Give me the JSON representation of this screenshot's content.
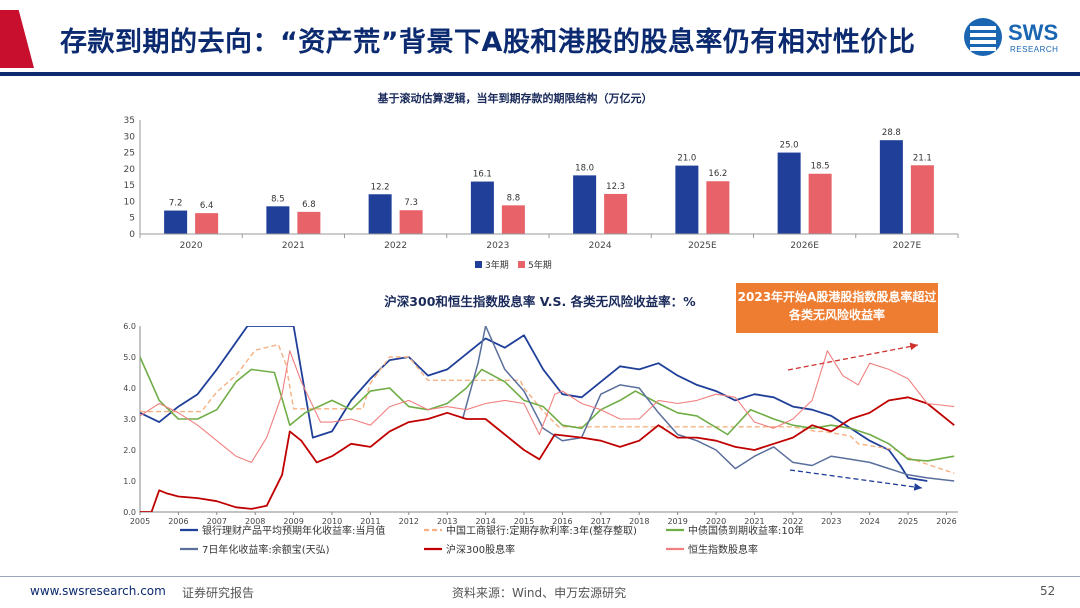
{
  "header": {
    "title": "存款到期的去向：“资产荒”背景下A股和港股的股息率仍有相对性价比",
    "logo_text": "SWS",
    "logo_sub": "RESEARCH"
  },
  "footer": {
    "url": "www.swsresearch.com",
    "report_type": "证券研究报告",
    "source": "资料来源：Wind、申万宏源研究",
    "page": "52"
  },
  "colors": {
    "navy": "#0b2a70",
    "bar_3y": "#1f3f99",
    "bar_5y": "#e8626a",
    "wmp": "#1f3f99",
    "icbc": "#f4b183",
    "cgb10": "#70ad47",
    "yuebao": "#5a6f9c",
    "csi300": "#c00000",
    "hsi": "#f08080",
    "callout": "#ee7d31"
  },
  "chart_data": [
    {
      "type": "bar",
      "title": "基于滚动估算逻辑，当年到期存款的期限结构（万亿元）",
      "categories": [
        "2020",
        "2021",
        "2022",
        "2023",
        "2024",
        "2025E",
        "2026E",
        "2027E"
      ],
      "series": [
        {
          "name": "3年期",
          "values": [
            7.2,
            8.5,
            12.2,
            16.1,
            18.0,
            21.0,
            25.0,
            28.8
          ]
        },
        {
          "name": "5年期",
          "values": [
            6.4,
            6.8,
            7.3,
            8.8,
            12.3,
            16.2,
            18.5,
            21.1
          ]
        }
      ],
      "data_labels": [
        [
          "7.2",
          "8.5",
          "12.2",
          "16.1",
          "18.0",
          "21.0",
          "25.0",
          "28.8"
        ],
        [
          "6.4",
          "6.8",
          "7.3",
          "8.8",
          "12.3",
          "16.2",
          "18.5",
          "21.1"
        ]
      ],
      "ylim": [
        0,
        35
      ],
      "yticks": [
        "0",
        "5",
        "10",
        "15",
        "20",
        "25",
        "30",
        "35"
      ],
      "legend_position": "bottom"
    },
    {
      "type": "line",
      "title": "沪深300和恒生指数股息率 V.S. 各类无风险收益率：%",
      "xlim": [
        2005,
        2026.3
      ],
      "ylim": [
        0,
        6
      ],
      "xticks": [
        "2005",
        "2006",
        "2007",
        "2008",
        "2009",
        "2010",
        "2011",
        "2012",
        "2013",
        "2014",
        "2015",
        "2016",
        "2017",
        "2018",
        "2019",
        "2020",
        "2021",
        "2022",
        "2023",
        "2024",
        "2025",
        "2026"
      ],
      "yticks": [
        "0.0",
        "1.0",
        "2.0",
        "3.0",
        "4.0",
        "5.0",
        "6.0"
      ],
      "legend_position": "bottom",
      "series": [
        {
          "name": "银行理财产品平均预期年化收益率:当月值",
          "x": [
            2005,
            2005.5,
            2006,
            2006.5,
            2007,
            2007.4,
            2007.8,
            2008,
            2009,
            2009.5,
            2010,
            2010.5,
            2011,
            2011.5,
            2012,
            2012.5,
            2013,
            2013.5,
            2014,
            2014.5,
            2015,
            2015.5,
            2016,
            2016.5,
            2017,
            2017.5,
            2018,
            2018.5,
            2019,
            2019.5,
            2020,
            2020.5,
            2021,
            2021.5,
            2022,
            2022.5,
            2023,
            2023.5,
            2024,
            2024.5,
            2024.8,
            2025,
            2025.5
          ],
          "y": [
            3.2,
            2.9,
            3.4,
            3.8,
            4.6,
            5.3,
            6.0,
            6.0,
            6.0,
            2.4,
            2.6,
            3.6,
            4.3,
            4.9,
            5.0,
            4.4,
            4.6,
            5.1,
            5.6,
            5.3,
            5.7,
            4.6,
            3.8,
            3.7,
            4.2,
            4.7,
            4.6,
            4.8,
            4.4,
            4.1,
            3.9,
            3.6,
            3.8,
            3.7,
            3.4,
            3.3,
            3.1,
            2.7,
            2.3,
            2.0,
            1.5,
            1.1,
            1.0
          ]
        },
        {
          "name": "中国工商银行:定期存款利率:3年(整存整取)",
          "x": [
            2005,
            2006.6,
            2007,
            2007.5,
            2008,
            2008.6,
            2008.8,
            2009,
            2010.8,
            2011,
            2011.5,
            2012,
            2012.5,
            2014.9,
            2015,
            2015.5,
            2015.9,
            2017,
            2019,
            2022,
            2022.6,
            2022.8,
            2023.5,
            2023.7,
            2024.7,
            2025,
            2026.2
          ],
          "y": [
            3.24,
            3.24,
            3.87,
            4.41,
            5.22,
            5.4,
            4.77,
            3.33,
            3.33,
            4.15,
            5.0,
            5.0,
            4.25,
            4.25,
            4.0,
            3.25,
            2.75,
            2.75,
            2.75,
            2.75,
            2.6,
            2.6,
            2.45,
            2.2,
            2.0,
            1.75,
            1.25
          ]
        },
        {
          "name": "中债国债到期收益率:10年",
          "x": [
            2005,
            2005.5,
            2006,
            2006.5,
            2007,
            2007.5,
            2007.9,
            2008.5,
            2008.9,
            2009.3,
            2010,
            2010.5,
            2011,
            2011.5,
            2012,
            2012.5,
            2013,
            2013.5,
            2013.9,
            2014.5,
            2015,
            2015.5,
            2016,
            2016.5,
            2017,
            2017.5,
            2017.9,
            2018.5,
            2019,
            2019.5,
            2020.3,
            2020.9,
            2021.5,
            2022,
            2022.5,
            2023,
            2023.5,
            2024,
            2024.5,
            2025,
            2025.5,
            2026.2
          ],
          "y": [
            5.0,
            3.6,
            3.0,
            3.0,
            3.3,
            4.2,
            4.6,
            4.5,
            2.8,
            3.2,
            3.6,
            3.3,
            3.9,
            4.0,
            3.4,
            3.3,
            3.5,
            4.0,
            4.6,
            4.2,
            3.6,
            3.4,
            2.8,
            2.7,
            3.3,
            3.6,
            3.9,
            3.5,
            3.2,
            3.1,
            2.5,
            3.3,
            3.0,
            2.8,
            2.7,
            2.8,
            2.7,
            2.5,
            2.2,
            1.7,
            1.65,
            1.8
          ]
        },
        {
          "name": "7日年化收益率:余额宝(天弘)",
          "x": [
            2013.4,
            2013.8,
            2014,
            2014.5,
            2015,
            2015.5,
            2016,
            2016.5,
            2017,
            2017.5,
            2018,
            2018.5,
            2019,
            2019.5,
            2020,
            2020.5,
            2021,
            2021.5,
            2022,
            2022.5,
            2023,
            2023.5,
            2024,
            2024.5,
            2025,
            2025.5,
            2026.2
          ],
          "y": [
            3.0,
            4.8,
            6.0,
            4.6,
            3.9,
            2.7,
            2.3,
            2.4,
            3.8,
            4.1,
            4.0,
            3.2,
            2.5,
            2.3,
            2.0,
            1.4,
            1.8,
            2.1,
            1.6,
            1.5,
            1.8,
            1.7,
            1.6,
            1.4,
            1.2,
            1.1,
            1.0
          ]
        },
        {
          "name": "沪深300股息率",
          "x": [
            2005,
            2005.3,
            2005.5,
            2005.7,
            2006,
            2006.5,
            2007,
            2007.5,
            2007.9,
            2008.3,
            2008.7,
            2008.9,
            2009.2,
            2009.6,
            2010,
            2010.5,
            2011,
            2011.5,
            2012,
            2012.5,
            2013,
            2013.5,
            2014,
            2014.5,
            2015,
            2015.4,
            2015.8,
            2016.5,
            2017,
            2017.5,
            2018,
            2018.5,
            2019,
            2019.5,
            2020,
            2020.5,
            2021,
            2021.5,
            2022,
            2022.5,
            2023,
            2023.5,
            2024,
            2024.5,
            2025,
            2025.5,
            2026.2
          ],
          "y": [
            0.0,
            0.0,
            0.7,
            0.6,
            0.5,
            0.45,
            0.35,
            0.15,
            0.1,
            0.2,
            1.2,
            2.6,
            2.3,
            1.6,
            1.8,
            2.2,
            2.1,
            2.6,
            2.9,
            3.0,
            3.2,
            3.0,
            3.0,
            2.5,
            2.0,
            1.7,
            2.5,
            2.4,
            2.3,
            2.1,
            2.3,
            2.8,
            2.4,
            2.4,
            2.3,
            2.1,
            2.0,
            2.2,
            2.4,
            2.8,
            2.6,
            3.0,
            3.2,
            3.6,
            3.7,
            3.5,
            2.8
          ]
        },
        {
          "name": "恒生指数股息率",
          "x": [
            2005,
            2005.5,
            2006,
            2006.5,
            2007,
            2007.5,
            2007.9,
            2008.3,
            2008.7,
            2008.9,
            2009.2,
            2009.7,
            2010,
            2010.5,
            2011,
            2011.5,
            2012,
            2012.5,
            2013,
            2013.5,
            2014,
            2014.5,
            2015,
            2015.4,
            2015.8,
            2016,
            2016.5,
            2017,
            2017.5,
            2018,
            2018.5,
            2019,
            2019.5,
            2020,
            2020.5,
            2021,
            2021.5,
            2022,
            2022.5,
            2022.9,
            2023.3,
            2023.7,
            2024,
            2024.5,
            2025,
            2025.5,
            2026.2
          ],
          "y": [
            3.1,
            3.5,
            3.2,
            2.8,
            2.3,
            1.8,
            1.6,
            2.4,
            3.8,
            5.2,
            4.2,
            2.9,
            2.9,
            3.0,
            2.8,
            3.4,
            3.6,
            3.3,
            3.4,
            3.3,
            3.5,
            3.6,
            3.5,
            2.5,
            3.8,
            3.9,
            3.5,
            3.3,
            3.0,
            3.0,
            3.6,
            3.5,
            3.6,
            3.8,
            3.7,
            2.9,
            2.7,
            3.0,
            3.6,
            5.2,
            4.4,
            4.1,
            4.8,
            4.6,
            4.3,
            3.5,
            3.4
          ]
        }
      ],
      "annotations": [
        "2023年开始A股港股指数股息率超过各类无风险收益率"
      ]
    }
  ],
  "callout": {
    "line1": "2023年开始A股港股指数股息率超过",
    "line2": "各类无风险收益率"
  }
}
